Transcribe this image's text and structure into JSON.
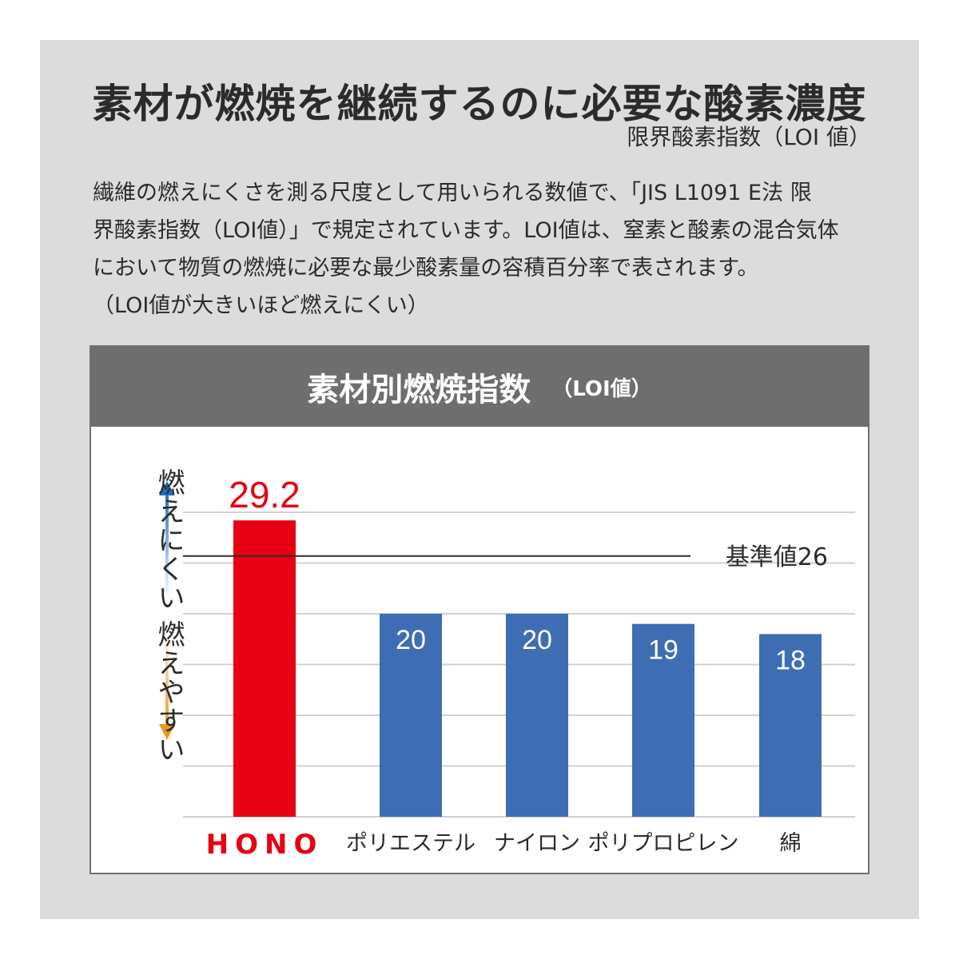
{
  "heading": {
    "title": "素材が燃焼を継続するのに必要な酸素濃度",
    "subtitle": "限界酸素指数（LOI 値）"
  },
  "description": {
    "lines": [
      "繊維の燃えにくさを測る尺度として用いられる数値で、「JIS L1091 E法 限",
      "界酸素指数（LOI値）」で規定されています。LOI値は、窒素と酸素の混合気体",
      "において物質の燃焼に必要な最少酸素量の容積百分率で表されます。",
      "（LOI値が大きいほど燃えにくい）"
    ]
  },
  "chart_header": {
    "title": "素材別燃焼指数",
    "unit": "（LOI値）"
  },
  "side_labels": {
    "top": "燃えにくい",
    "bottom": "燃えやすい"
  },
  "colors": {
    "highlight": "#e60012",
    "bar": "#3f6db3",
    "arrow_up": "#1a6fc0",
    "arrow_down": "#e89a1e",
    "grid": "#d0d0d0"
  },
  "chart_data": {
    "type": "bar",
    "title": "素材別燃焼指数",
    "unit": "（LOI値）",
    "categories": [
      "HONO",
      "ポリエステル",
      "ナイロン",
      "ポリプロピレン",
      "綿"
    ],
    "values": [
      29.2,
      20,
      20,
      19,
      18
    ],
    "value_labels": [
      "29.2",
      "20",
      "20",
      "19",
      "18"
    ],
    "highlight_index": 0,
    "ylim": [
      0,
      31
    ],
    "grid": true,
    "reference_line": {
      "value": 26,
      "label": "基準値26"
    }
  }
}
